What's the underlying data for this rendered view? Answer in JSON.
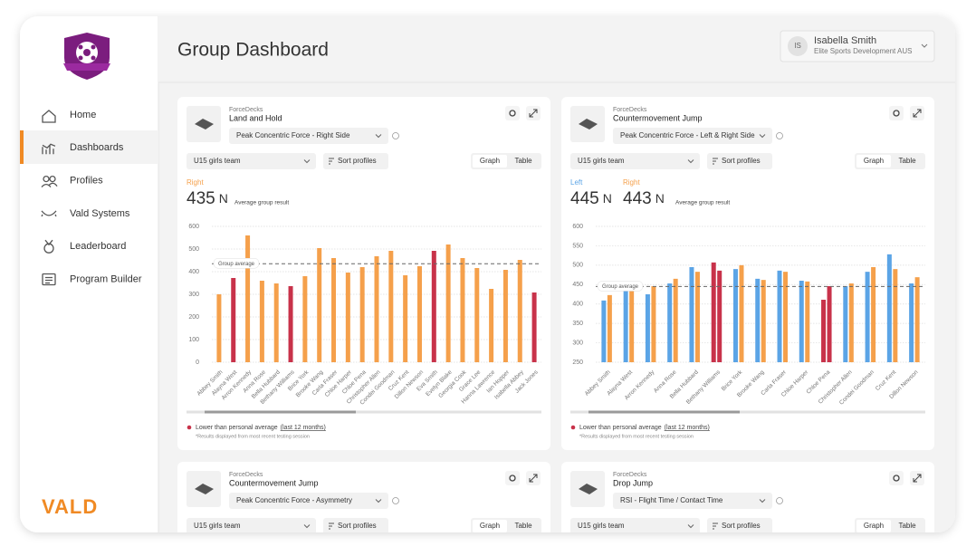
{
  "sidebar": {
    "nav": [
      "Home",
      "Dashboards",
      "Profiles",
      "Vald Systems",
      "Leaderboard",
      "Program Builder"
    ],
    "brand": "VALD"
  },
  "header": {
    "title": "Group Dashboard",
    "user": {
      "initials": "IS",
      "name": "Isabella Smith",
      "org": "Elite Sports Development AUS"
    }
  },
  "panels": [
    {
      "source": "ForceDecks",
      "test": "Land and Hold",
      "metric": "Peak Concentric Force - Right Side",
      "team": "U15 girls team",
      "sort": "Sort profiles",
      "views": [
        "Graph",
        "Table"
      ],
      "results": [
        {
          "label": "Right",
          "value": 435,
          "unit": "N"
        }
      ],
      "result_caption": "Average group result",
      "average_label": "Group average",
      "legend": "Lower than personal average",
      "legend_link": "(last 12 months)",
      "footnote": "*Results displayed from most recent testing session",
      "chart": {
        "type": "bar",
        "categories": [
          "Abbey Smith",
          "Alayna West",
          "Arron Kennedy",
          "Anna Rose",
          "Bella Hubbard",
          "Bethany Williams",
          "Brice York",
          "Brooke Wang",
          "Carla Fraser",
          "Chloe Harper",
          "Chloe Pena",
          "Christopher Allen",
          "Condei Goodman",
          "Cruz Kent",
          "Dillon Newson",
          "Eva Smith",
          "Evelyn Blake",
          "Georgia Cook",
          "Grace Lee",
          "Hanna Lawrence",
          "Ian Hopper",
          "Isabella Abbey",
          "Jack Jones"
        ],
        "series": [
          {
            "values": [
              300,
              372,
              560,
              360,
              348,
              336,
              380,
              504,
              460,
              396,
              420,
              468,
              492,
              384,
              424,
              492,
              520,
              460,
              416,
              324,
              408,
              452,
              308
            ],
            "colors": [
              "#F5A04B",
              "#C8324A",
              "#F5A04B",
              "#F5A04B",
              "#F5A04B",
              "#C8324A",
              "#F5A04B",
              "#F5A04B",
              "#F5A04B",
              "#F5A04B",
              "#F5A04B",
              "#F5A04B",
              "#F5A04B",
              "#F5A04B",
              "#F5A04B",
              "#C8324A",
              "#F5A04B",
              "#F5A04B",
              "#F5A04B",
              "#F5A04B",
              "#F5A04B",
              "#F5A04B",
              "#C8324A"
            ]
          }
        ],
        "ylim": [
          0,
          600
        ],
        "yticks": [
          0,
          100,
          200,
          300,
          400,
          500,
          600
        ],
        "grid": true
      }
    },
    {
      "source": "ForceDecks",
      "test": "Countermovement Jump",
      "metric": "Peak Concentric Force - Left & Right Side",
      "team": "U15 girls team",
      "sort": "Sort profiles",
      "views": [
        "Graph",
        "Table"
      ],
      "results": [
        {
          "label": "Left",
          "value": 445,
          "unit": "N"
        },
        {
          "label": "Right",
          "value": 443,
          "unit": "N"
        }
      ],
      "result_caption": "Average group result",
      "average_label": "Group average",
      "legend": "Lower than personal average",
      "legend_link": "(last 12 months)",
      "footnote": "*Results displayed from most recent testing session",
      "chart": {
        "type": "bar",
        "categories": [
          "Abbey Smith",
          "Alayna West",
          "Arron Kennedy",
          "Anna Rose",
          "Bella Hubbard",
          "Bethany Williams",
          "Brice York",
          "Brooke Wang",
          "Carla Fraser",
          "Chloe Harper",
          "Chloe Pena",
          "Christopher Allen",
          "Condei Goodman",
          "Cruz Kent",
          "Dillon Newson"
        ],
        "series": [
          {
            "values": [
              409,
              448,
              425,
              453,
              495,
              507,
              490,
              465,
              486,
              460,
              411,
              446,
              483,
              528,
              453
            ],
            "colors": [
              "#5BA4E6",
              "#5BA4E6",
              "#5BA4E6",
              "#5BA4E6",
              "#5BA4E6",
              "#C8324A",
              "#5BA4E6",
              "#5BA4E6",
              "#5BA4E6",
              "#5BA4E6",
              "#C8324A",
              "#5BA4E6",
              "#5BA4E6",
              "#5BA4E6",
              "#5BA4E6"
            ]
          },
          {
            "values": [
              423,
              446,
              446,
              465,
              483,
              486,
              500,
              462,
              483,
              458,
              446,
              453,
              495,
              490,
              469
            ],
            "colors": [
              "#F5A04B",
              "#F5A04B",
              "#F5A04B",
              "#F5A04B",
              "#F5A04B",
              "#C8324A",
              "#F5A04B",
              "#F5A04B",
              "#F5A04B",
              "#F5A04B",
              "#C8324A",
              "#F5A04B",
              "#F5A04B",
              "#F5A04B",
              "#F5A04B"
            ]
          }
        ],
        "ylim": [
          250,
          600
        ],
        "yticks": [
          250,
          300,
          350,
          400,
          450,
          500,
          550,
          600
        ],
        "grid": true
      }
    },
    {
      "source": "ForceDecks",
      "test": "Countermovement Jump",
      "metric": "Peak Concentric Force - Asymmetry",
      "team": "U15 girls team",
      "sort": "Sort profiles",
      "views": [
        "Graph",
        "Table"
      ]
    },
    {
      "source": "ForceDecks",
      "test": "Drop Jump",
      "metric": "RSI - Flight Time / Contact Time",
      "team": "U15 girls team",
      "sort": "Sort profiles",
      "views": [
        "Graph",
        "Table"
      ]
    }
  ]
}
